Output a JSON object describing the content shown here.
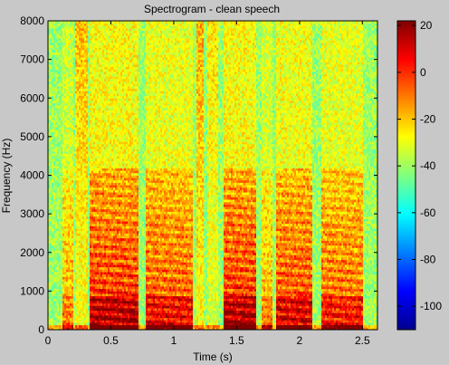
{
  "chart_data": {
    "type": "heatmap",
    "title": "Spectrogram - clean speech",
    "xlabel": "Time (s)",
    "ylabel": "Frequency (Hz)",
    "xlim": [
      0,
      2.62
    ],
    "ylim": [
      0,
      8000
    ],
    "x_ticks": [
      0,
      0.5,
      1,
      1.5,
      2,
      2.5
    ],
    "x_tick_labels": [
      "0",
      "0.5",
      "1",
      "1.5",
      "2",
      "2.5"
    ],
    "y_ticks": [
      0,
      1000,
      2000,
      3000,
      4000,
      5000,
      6000,
      7000,
      8000
    ],
    "y_tick_labels": [
      "0",
      "1000",
      "2000",
      "3000",
      "4000",
      "5000",
      "6000",
      "7000",
      "8000"
    ],
    "colorbar": {
      "range": [
        -110,
        22
      ],
      "ticks": [
        20,
        0,
        -20,
        -40,
        -60,
        -80,
        -100
      ],
      "tick_labels": [
        "20",
        "0",
        "-20",
        "-40",
        "-60",
        "-80",
        "-100"
      ],
      "colormap": "jet"
    },
    "speech_segments": [
      {
        "start": 0.12,
        "end": 0.2,
        "level": 0.55
      },
      {
        "start": 0.33,
        "end": 0.72,
        "level": 1.0
      },
      {
        "start": 0.78,
        "end": 1.15,
        "level": 0.85
      },
      {
        "start": 1.4,
        "end": 1.65,
        "level": 1.0
      },
      {
        "start": 1.7,
        "end": 1.78,
        "level": 0.55
      },
      {
        "start": 1.82,
        "end": 2.1,
        "level": 0.9
      },
      {
        "start": 2.18,
        "end": 2.5,
        "level": 0.8
      }
    ],
    "fricative_segments": [
      {
        "start": 0.22,
        "end": 0.32,
        "level": 0.6
      },
      {
        "start": 1.18,
        "end": 1.24,
        "level": 0.7
      },
      {
        "start": 1.26,
        "end": 1.36,
        "level": 0.45
      }
    ],
    "background_level_db": -40
  }
}
